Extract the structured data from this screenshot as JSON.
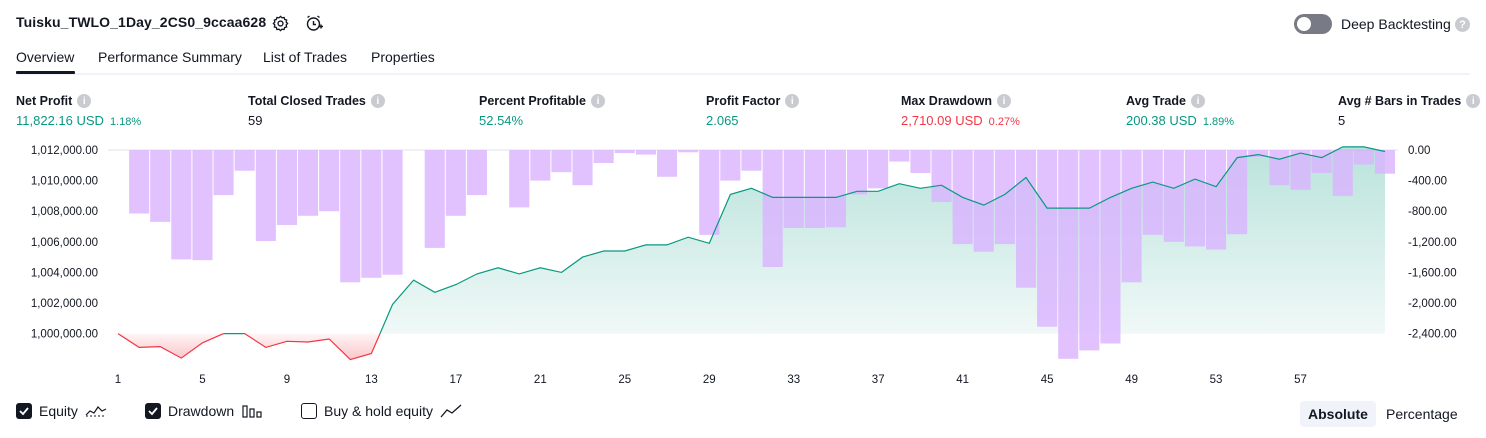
{
  "header": {
    "title": "Tuisku_TWLO_1Day_2CS0_9ccaa628",
    "settings_icon": "gear-icon",
    "alert_icon": "alarm-clock-plus-icon",
    "deep_backtesting_label": "Deep Backtesting",
    "deep_backtesting_enabled": false
  },
  "tabs": [
    {
      "label": "Overview",
      "active": true
    },
    {
      "label": "Performance Summary",
      "active": false
    },
    {
      "label": "List of Trades",
      "active": false
    },
    {
      "label": "Properties",
      "active": false
    }
  ],
  "metrics": [
    {
      "label": "Net Profit",
      "value": "11,822.16 USD",
      "pct": "1.18%",
      "tone": "green"
    },
    {
      "label": "Total Closed Trades",
      "value": "59",
      "pct": "",
      "tone": "dark"
    },
    {
      "label": "Percent Profitable",
      "value": "52.54%",
      "pct": "",
      "tone": "green"
    },
    {
      "label": "Profit Factor",
      "value": "2.065",
      "pct": "",
      "tone": "green"
    },
    {
      "label": "Max Drawdown",
      "value": "2,710.09 USD",
      "pct": "0.27%",
      "tone": "red"
    },
    {
      "label": "Avg Trade",
      "value": "200.38 USD",
      "pct": "1.89%",
      "tone": "green"
    },
    {
      "label": "Avg # Bars in Trades",
      "value": "5",
      "pct": "",
      "tone": "dark"
    }
  ],
  "colors": {
    "equity_up": "#089981",
    "equity_down": "#f23645",
    "drawdown": "#d9b3ff",
    "text": "#131722"
  },
  "chart_data": {
    "type": "area",
    "x_ticks": [
      "1",
      "5",
      "9",
      "13",
      "17",
      "21",
      "25",
      "29",
      "33",
      "37",
      "41",
      "45",
      "49",
      "53",
      "57"
    ],
    "left_axis_ticks": [
      "1,012,000.00",
      "1,010,000.00",
      "1,008,000.00",
      "1,006,000.00",
      "1,004,000.00",
      "1,002,000.00",
      "1,000,000.00"
    ],
    "right_axis_ticks": [
      "0.00",
      "-400.00",
      "-800.00",
      "-1,200.00",
      "-1,600.00",
      "-2,000.00",
      "-2,400.00"
    ],
    "equity_baseline": 1000000,
    "left_ylim": [
      999000,
      1012000
    ],
    "right_ylim": [
      -2733,
      0
    ],
    "series": [
      {
        "name": "Equity",
        "axis": "left",
        "values": [
          1000000,
          999100,
          999150,
          998400,
          999400,
          1000000,
          1000000,
          999100,
          999500,
          999450,
          999650,
          998300,
          998700,
          1001900,
          1003500,
          1002700,
          1003200,
          1003900,
          1004300,
          1003900,
          1004300,
          1004000,
          1005000,
          1005400,
          1005400,
          1005800,
          1005800,
          1006300,
          1005900,
          1009100,
          1009500,
          1008900,
          1008900,
          1008900,
          1008900,
          1009300,
          1009300,
          1009800,
          1009500,
          1009700,
          1008900,
          1008400,
          1009100,
          1010200,
          1008200,
          1008200,
          1008200,
          1008900,
          1009500,
          1009900,
          1009500,
          1010100,
          1009600,
          1011500,
          1011700,
          1011400,
          1011800,
          1011500,
          1012200,
          1012200,
          1011900
        ]
      },
      {
        "name": "Drawdown",
        "axis": "right",
        "values": [
          0,
          -830,
          -940,
          -1430,
          -1440,
          -590,
          -270,
          -1190,
          -980,
          -860,
          -800,
          -1730,
          -1670,
          -1630,
          0,
          -1280,
          -860,
          -590,
          0,
          -750,
          -400,
          -290,
          -460,
          -170,
          -40,
          -60,
          -350,
          -30,
          -1110,
          -400,
          -270,
          -1530,
          -1020,
          -1020,
          -1010,
          -580,
          -500,
          -150,
          -300,
          -680,
          -1230,
          -1330,
          -1230,
          -1800,
          -2310,
          -2730,
          -2620,
          -2530,
          -1730,
          -1110,
          -1200,
          -1260,
          -1300,
          -1100,
          -90,
          -460,
          -520,
          -300,
          -600,
          -190,
          -310
        ]
      }
    ]
  },
  "legend": [
    {
      "label": "Equity",
      "checked": true,
      "icon": "equity-line-icon"
    },
    {
      "label": "Drawdown",
      "checked": true,
      "icon": "drawdown-bars-icon"
    },
    {
      "label": "Buy & hold equity",
      "checked": false,
      "icon": "trend-line-icon"
    }
  ],
  "modes": [
    {
      "label": "Absolute",
      "active": true
    },
    {
      "label": "Percentage",
      "active": false
    }
  ]
}
